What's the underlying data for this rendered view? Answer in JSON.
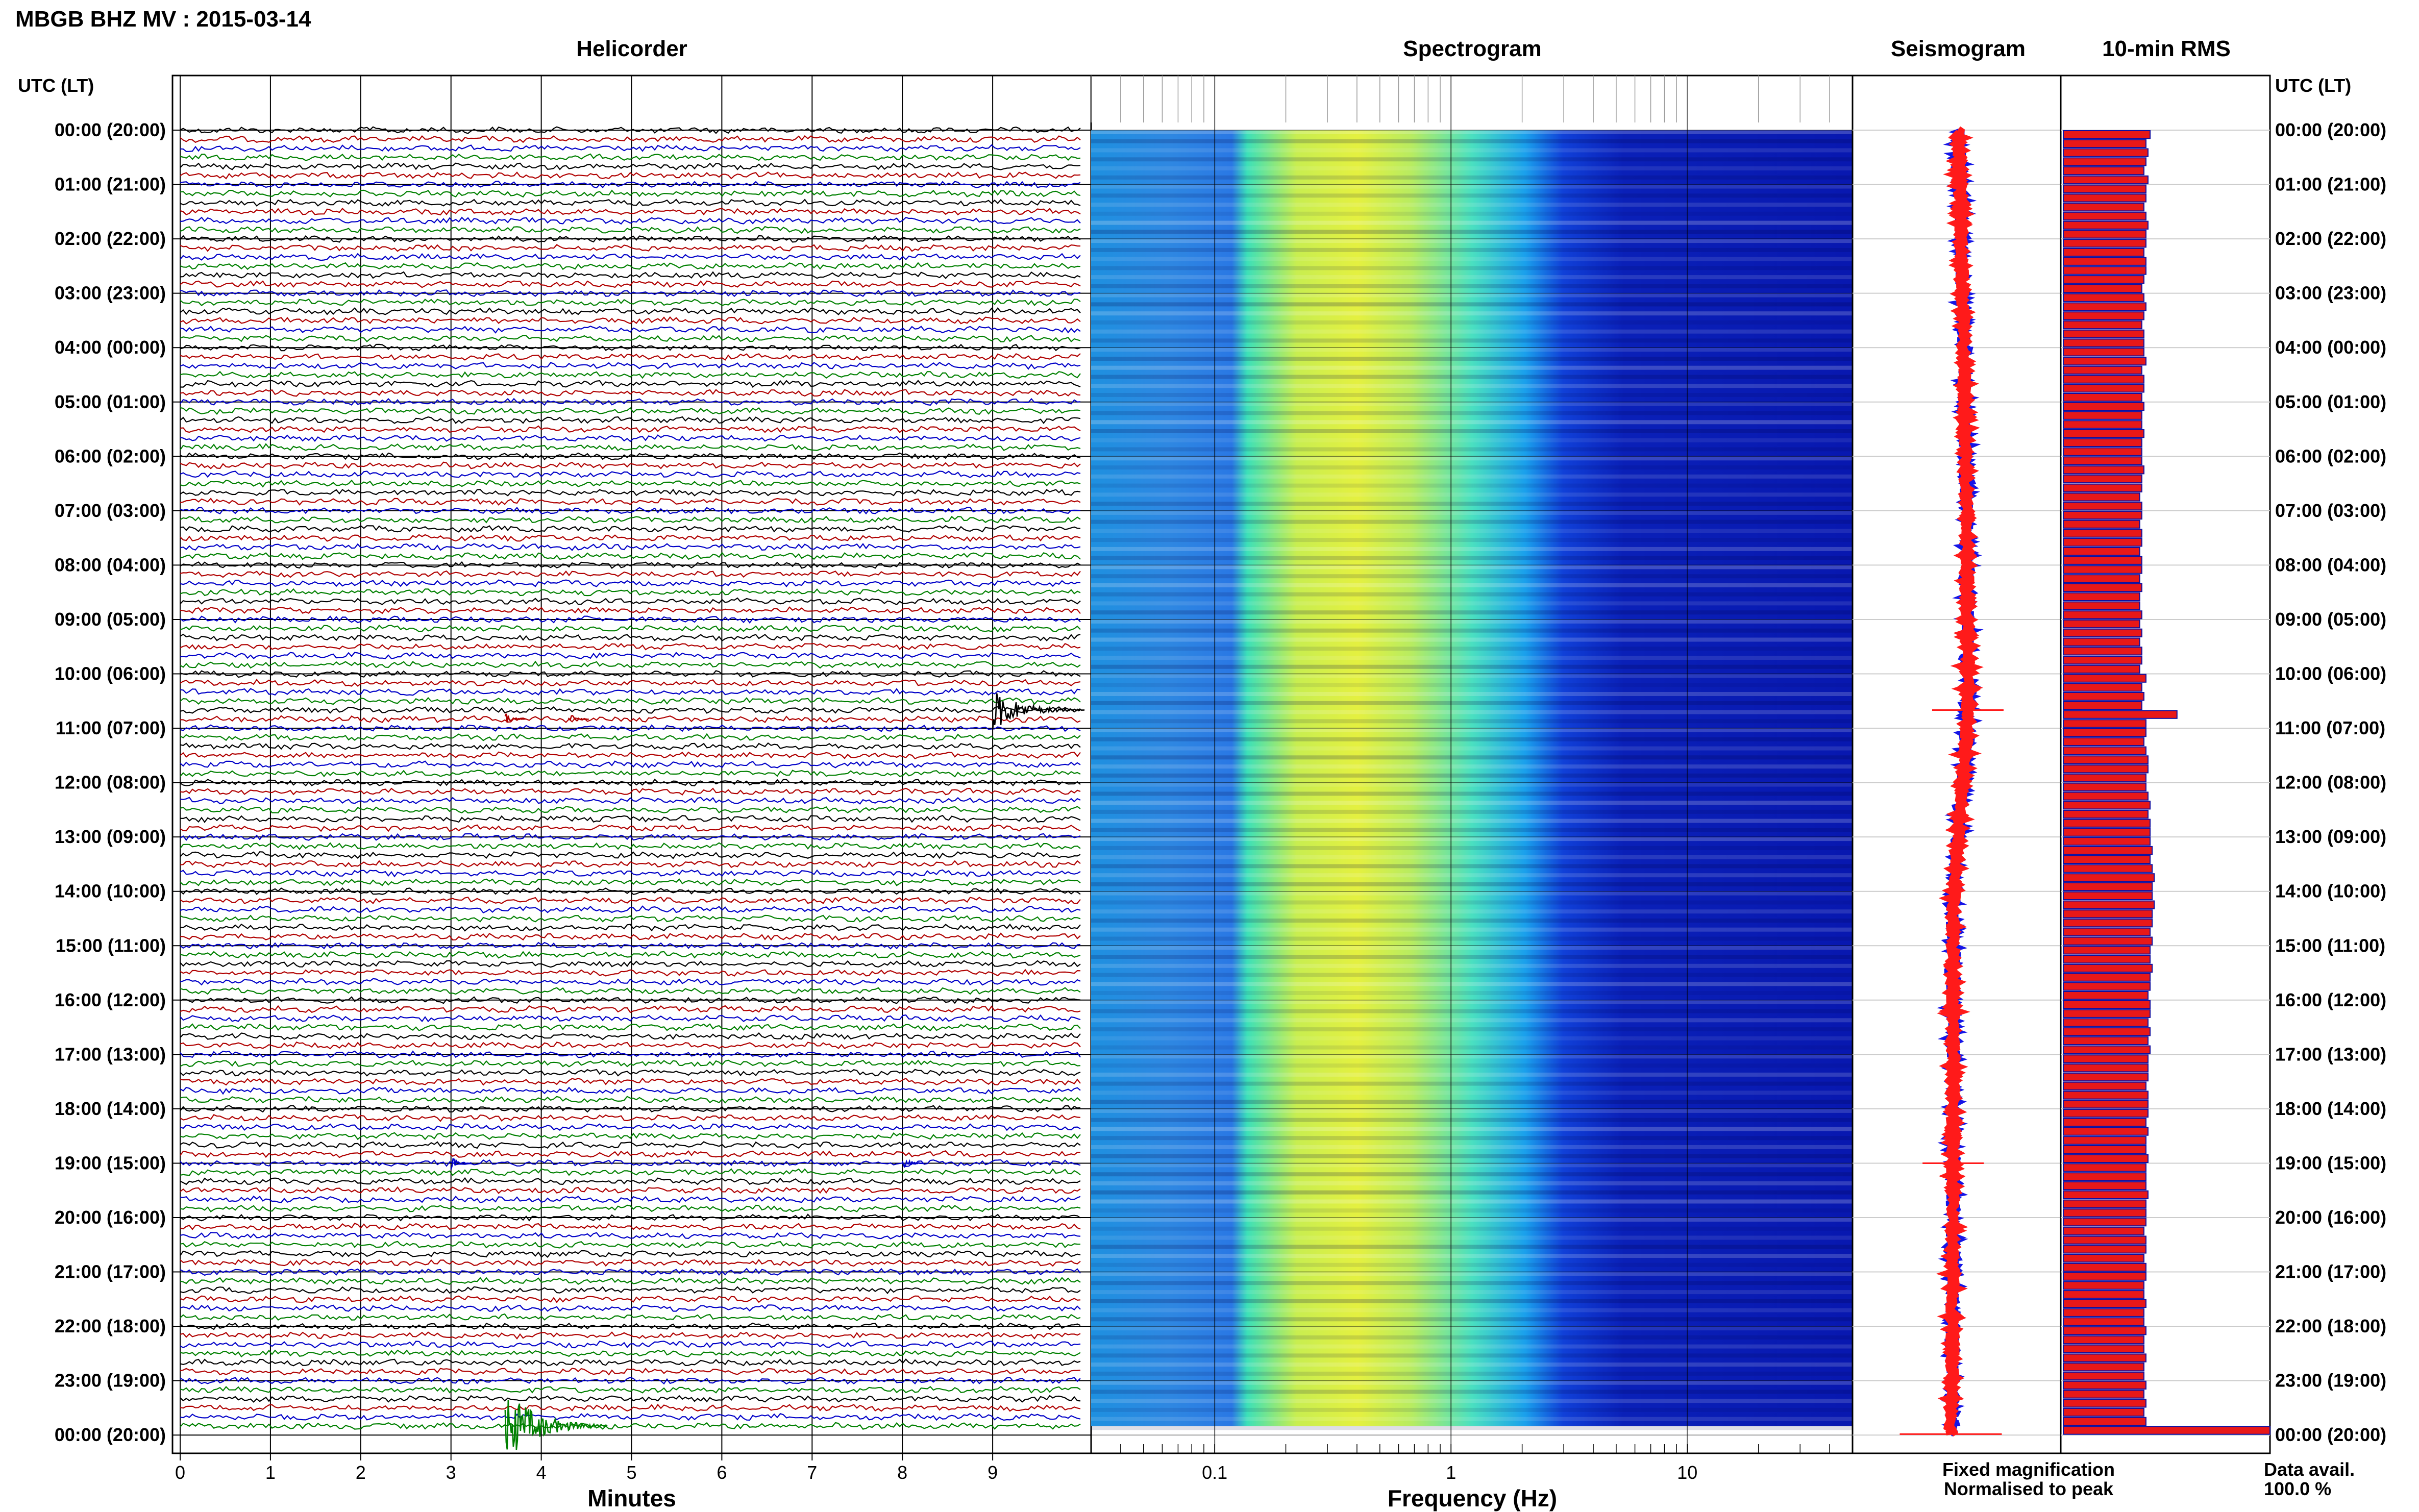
{
  "header": {
    "title": "MBGB BHZ MV : 2015-03-14",
    "utc_label_left": "UTC (LT)",
    "utc_label_right": "UTC (LT)"
  },
  "panels": {
    "helicorder": "Helicorder",
    "spectrogram": "Spectrogram",
    "seismogram": "Seismogram",
    "rms": "10-min RMS"
  },
  "axes": {
    "minutes_label": "Minutes",
    "frequency_label": "Frequency (Hz)",
    "minute_ticks": [
      "0",
      "1",
      "2",
      "3",
      "4",
      "5",
      "6",
      "7",
      "8",
      "9"
    ],
    "frequency_ticks": [
      "0.1",
      "1",
      "10"
    ]
  },
  "hour_labels": [
    "00:00 (20:00)",
    "01:00 (21:00)",
    "02:00 (22:00)",
    "03:00 (23:00)",
    "04:00 (00:00)",
    "05:00 (01:00)",
    "06:00 (02:00)",
    "07:00 (03:00)",
    "08:00 (04:00)",
    "09:00 (05:00)",
    "10:00 (06:00)",
    "11:00 (07:00)",
    "12:00 (08:00)",
    "13:00 (09:00)",
    "14:00 (10:00)",
    "15:00 (11:00)",
    "16:00 (12:00)",
    "17:00 (13:00)",
    "18:00 (14:00)",
    "19:00 (15:00)",
    "20:00 (16:00)",
    "21:00 (17:00)",
    "22:00 (18:00)",
    "23:00 (19:00)",
    "00:00 (20:00)"
  ],
  "legend": {
    "fixed": "Fixed magnification",
    "normalised": "Normalised to peak",
    "fixed_color": "#1515e6",
    "normalised_color": "#ff1a1a"
  },
  "data_avail": {
    "label": "Data avail.",
    "value": "100.0 %"
  },
  "colors": {
    "trace_cycle": [
      "#000000",
      "#b00000",
      "#0000c8",
      "#008000"
    ],
    "rms_fill": "#e81818",
    "rms_edge": "#1010a0"
  },
  "chart_data": [
    {
      "type": "line",
      "name": "helicorder",
      "title": "Helicorder",
      "xlabel": "Minutes",
      "ylabel": "UTC (LT)",
      "xlim": [
        0,
        10
      ],
      "rows_per_day": 144,
      "minutes_per_row": 10,
      "events": [
        {
          "utc": "10:40",
          "minute": 9.0,
          "amplitude": "moderate"
        },
        {
          "utc": "10:50",
          "minute": 3.6,
          "amplitude": "small"
        },
        {
          "utc": "10:50",
          "minute": 4.3,
          "amplitude": "small"
        },
        {
          "utc": "19:00",
          "minute": 3.0,
          "amplitude": "small"
        },
        {
          "utc": "19:00",
          "minute": 8.0,
          "amplitude": "small"
        },
        {
          "utc": "23:50",
          "minute": 3.6,
          "amplitude": "large"
        }
      ]
    },
    {
      "type": "heatmap",
      "name": "spectrogram",
      "title": "Spectrogram",
      "xlabel": "Frequency (Hz)",
      "xscale": "log",
      "xlim": [
        0.03,
        50
      ],
      "grid": true
    },
    {
      "type": "line",
      "name": "seismogram",
      "title": "Seismogram"
    },
    {
      "type": "bar",
      "name": "rms",
      "title": "10-min RMS",
      "orientation": "horizontal",
      "values": [
        0.42,
        0.4,
        0.41,
        0.4,
        0.39,
        0.41,
        0.4,
        0.4,
        0.39,
        0.4,
        0.41,
        0.4,
        0.4,
        0.39,
        0.4,
        0.4,
        0.39,
        0.38,
        0.39,
        0.4,
        0.39,
        0.38,
        0.39,
        0.39,
        0.39,
        0.4,
        0.38,
        0.39,
        0.39,
        0.38,
        0.39,
        0.38,
        0.38,
        0.39,
        0.38,
        0.38,
        0.38,
        0.39,
        0.38,
        0.38,
        0.37,
        0.38,
        0.38,
        0.37,
        0.38,
        0.38,
        0.37,
        0.38,
        0.38,
        0.37,
        0.38,
        0.37,
        0.37,
        0.38,
        0.37,
        0.38,
        0.37,
        0.38,
        0.38,
        0.37,
        0.4,
        0.38,
        0.39,
        0.38,
        0.55,
        0.4,
        0.4,
        0.39,
        0.4,
        0.41,
        0.41,
        0.4,
        0.4,
        0.41,
        0.42,
        0.41,
        0.42,
        0.42,
        0.42,
        0.43,
        0.42,
        0.43,
        0.44,
        0.43,
        0.43,
        0.44,
        0.43,
        0.43,
        0.42,
        0.43,
        0.42,
        0.42,
        0.43,
        0.42,
        0.42,
        0.41,
        0.42,
        0.42,
        0.41,
        0.42,
        0.41,
        0.42,
        0.41,
        0.41,
        0.41,
        0.4,
        0.41,
        0.41,
        0.41,
        0.4,
        0.41,
        0.4,
        0.4,
        0.41,
        0.4,
        0.4,
        0.4,
        0.41,
        0.4,
        0.4,
        0.4,
        0.39,
        0.4,
        0.4,
        0.39,
        0.4,
        0.4,
        0.39,
        0.39,
        0.4,
        0.39,
        0.39,
        0.4,
        0.39,
        0.39,
        0.4,
        0.39,
        0.39,
        0.4,
        0.39,
        0.4,
        0.39,
        0.4,
        1.0
      ]
    }
  ]
}
